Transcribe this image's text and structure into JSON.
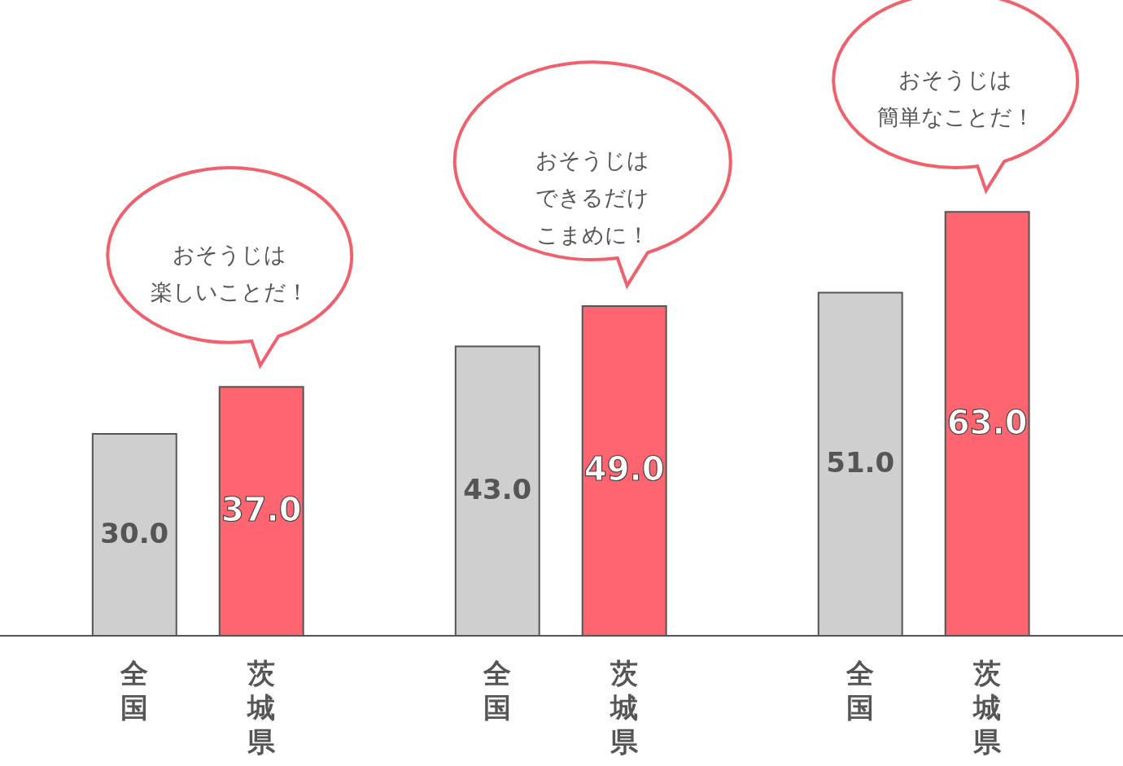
{
  "chart_data": {
    "type": "bar",
    "categories": [
      "全国",
      "茨城県",
      "全国",
      "茨城県",
      "全国",
      "茨城県"
    ],
    "values": [
      30,
      37,
      43,
      49,
      51,
      63
    ],
    "colors": [
      "#cfcfcf",
      "#ff6471",
      "#cfcfcf",
      "#ff6471",
      "#cfcfcf",
      "#ff6471"
    ],
    "value_labels": [
      "30.0",
      "37.0",
      "43.0",
      "49.0",
      "51.0",
      "63.0"
    ],
    "annotations": [
      "おそうじは楽しいことだ！",
      "おそうじはできるだけこまめに！",
      "おそうじは簡単なことだ！"
    ]
  }
}
